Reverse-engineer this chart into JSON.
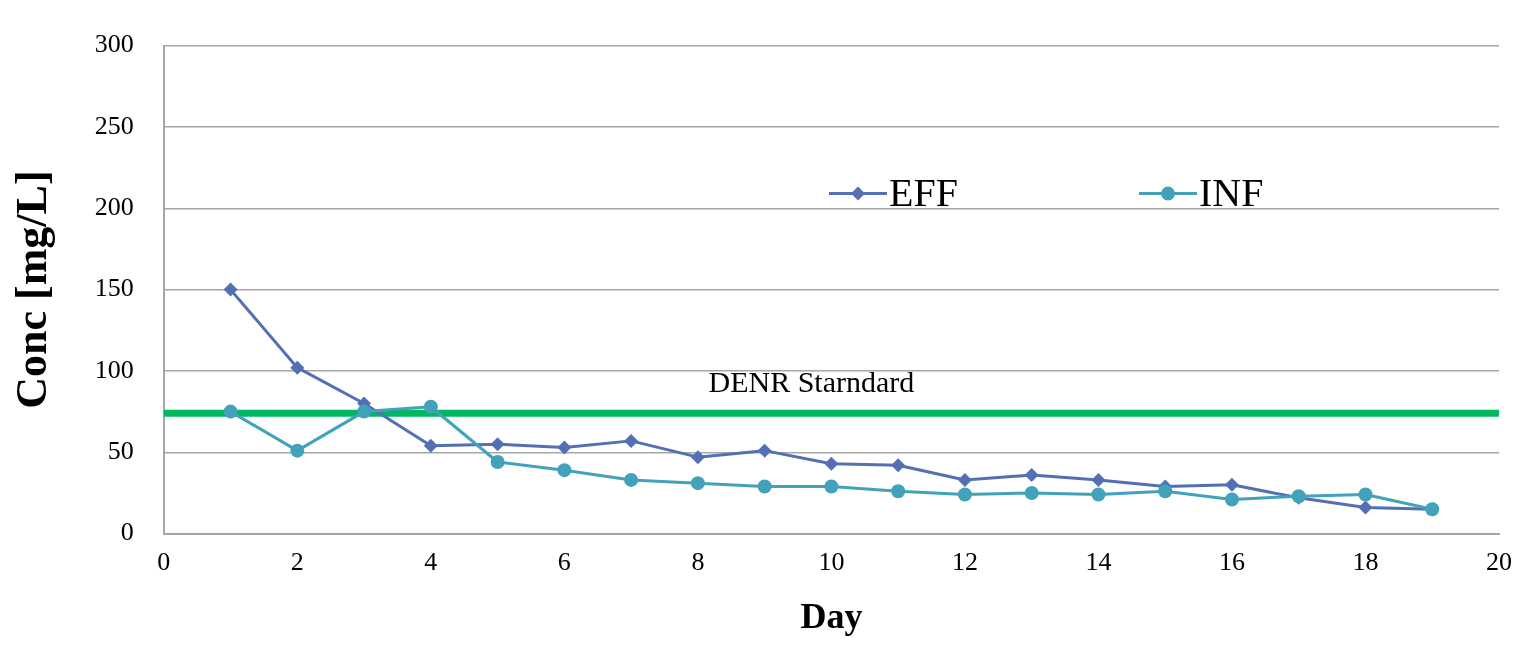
{
  "chart_data": {
    "type": "line",
    "xlabel": "Day",
    "ylabel": "Conc [mg/L]",
    "x": [
      1,
      2,
      3,
      4,
      5,
      6,
      7,
      8,
      9,
      10,
      11,
      12,
      13,
      14,
      15,
      16,
      17,
      18,
      19
    ],
    "series": [
      {
        "name": "EFF",
        "color": "#5470b4",
        "marker": "diamond",
        "values": [
          150,
          102,
          80,
          54,
          55,
          53,
          57,
          47,
          51,
          43,
          42,
          33,
          36,
          33,
          29,
          30,
          22,
          16,
          15
        ]
      },
      {
        "name": "INF",
        "color": "#41a2ba",
        "marker": "circle",
        "values": [
          75,
          51,
          75,
          78,
          44,
          39,
          33,
          31,
          29,
          29,
          26,
          24,
          25,
          24,
          26,
          21,
          23,
          24,
          15
        ]
      }
    ],
    "xlim": [
      0,
      20
    ],
    "xticks": [
      0,
      2,
      4,
      6,
      8,
      10,
      12,
      14,
      16,
      18,
      20
    ],
    "ylim": [
      0,
      300
    ],
    "yticks": [
      0,
      50,
      100,
      150,
      200,
      250,
      300
    ],
    "grid": "y",
    "legend": "top right",
    "ref_lines": [
      {
        "axis": "y",
        "value": 74,
        "label": "DENR Starndard",
        "color": "#00b862"
      }
    ]
  }
}
